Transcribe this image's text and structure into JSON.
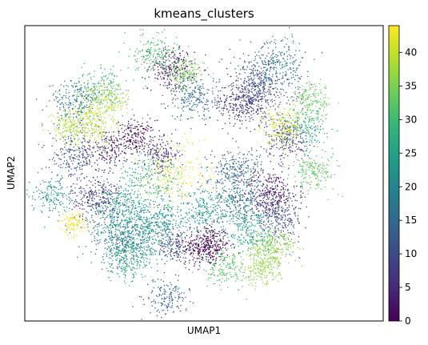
{
  "chart_data": {
    "type": "scatter",
    "title": "kmeans_clusters",
    "xlabel": "UMAP1",
    "ylabel": "UMAP2",
    "x_ticks_shown": false,
    "y_ticks_shown": false,
    "grid": false,
    "colormap": "viridis",
    "colorbar": {
      "min": 0,
      "max": 44,
      "ticks": [
        0,
        5,
        10,
        15,
        20,
        25,
        30,
        35,
        40
      ],
      "tick_labels": [
        "0",
        "5",
        "10",
        "15",
        "20",
        "25",
        "30",
        "35",
        "40"
      ]
    },
    "viridis_stops": [
      "#440154",
      "#482878",
      "#3e4989",
      "#31688e",
      "#26828e",
      "#1f9e89",
      "#35b779",
      "#6ece58",
      "#b5de2b",
      "#fde725"
    ],
    "xlim": [
      -11,
      13
    ],
    "ylim": [
      -10,
      12
    ],
    "clusters": [
      {
        "cluster": 0,
        "x": 1.2,
        "y": -4.4,
        "spread": 0.9,
        "n": 340
      },
      {
        "cluster": 1,
        "x": -3.6,
        "y": 3.6,
        "spread": 0.8,
        "n": 200
      },
      {
        "cluster": 2,
        "x": -1.2,
        "y": 8.8,
        "spread": 0.9,
        "n": 220
      },
      {
        "cluster": 3,
        "x": 5.4,
        "y": -0.6,
        "spread": 1.1,
        "n": 330
      },
      {
        "cluster": 4,
        "x": -5.6,
        "y": 2.8,
        "spread": 0.9,
        "n": 180
      },
      {
        "cluster": 5,
        "x": -1.8,
        "y": 2.4,
        "spread": 0.7,
        "n": 140
      },
      {
        "cluster": 6,
        "x": 3.6,
        "y": 6.2,
        "spread": 1.0,
        "n": 260
      },
      {
        "cluster": 7,
        "x": -6.2,
        "y": -0.8,
        "spread": 1.0,
        "n": 260
      },
      {
        "cluster": 8,
        "x": 6.6,
        "y": 3.6,
        "spread": 0.9,
        "n": 220
      },
      {
        "cluster": 9,
        "x": -0.9,
        "y": -4.5,
        "spread": 0.7,
        "n": 140
      },
      {
        "cluster": 10,
        "x": 4.6,
        "y": 7.4,
        "spread": 1.4,
        "n": 420
      },
      {
        "cluster": 11,
        "x": 6.0,
        "y": -2.4,
        "spread": 1.0,
        "n": 240
      },
      {
        "cluster": 12,
        "x": -7.8,
        "y": 2.2,
        "spread": 0.9,
        "n": 180
      },
      {
        "cluster": 13,
        "x": -1.5,
        "y": -8.3,
        "spread": 0.8,
        "n": 150
      },
      {
        "cluster": 14,
        "x": 3.2,
        "y": 1.1,
        "spread": 1.1,
        "n": 280
      },
      {
        "cluster": 15,
        "x": 0.3,
        "y": 6.6,
        "spread": 1.0,
        "n": 230
      },
      {
        "cluster": 16,
        "x": -4.3,
        "y": -4.6,
        "spread": 1.0,
        "n": 220
      },
      {
        "cluster": 17,
        "x": -7.6,
        "y": 6.3,
        "spread": 1.0,
        "n": 200
      },
      {
        "cluster": 18,
        "x": 6.0,
        "y": 9.3,
        "spread": 1.2,
        "n": 210
      },
      {
        "cluster": 19,
        "x": 3.2,
        "y": -1.4,
        "spread": 1.0,
        "n": 220
      },
      {
        "cluster": 20,
        "x": -5.0,
        "y": -3.2,
        "spread": 1.2,
        "n": 240
      },
      {
        "cluster": 21,
        "x": -1.8,
        "y": -2.6,
        "spread": 1.0,
        "n": 200
      },
      {
        "cluster": 22,
        "x": -9.2,
        "y": -0.6,
        "spread": 0.8,
        "n": 160
      },
      {
        "cluster": 23,
        "x": -3.0,
        "y": -3.4,
        "spread": 1.2,
        "n": 260
      },
      {
        "cluster": 24,
        "x": 1.0,
        "y": -1.8,
        "spread": 1.1,
        "n": 230
      },
      {
        "cluster": 25,
        "x": -4.6,
        "y": -1.4,
        "spread": 1.0,
        "n": 200
      },
      {
        "cluster": 26,
        "x": 4.2,
        "y": -3.4,
        "spread": 1.0,
        "n": 200
      },
      {
        "cluster": 27,
        "x": -2.6,
        "y": 0.6,
        "spread": 1.4,
        "n": 230
      },
      {
        "cluster": 28,
        "x": 7.8,
        "y": 4.4,
        "spread": 0.8,
        "n": 160
      },
      {
        "cluster": 29,
        "x": -4.0,
        "y": -5.6,
        "spread": 0.9,
        "n": 180
      },
      {
        "cluster": 30,
        "x": -5.8,
        "y": 7.2,
        "spread": 1.0,
        "n": 200
      },
      {
        "cluster": 31,
        "x": -2.2,
        "y": 10.0,
        "spread": 0.9,
        "n": 180
      },
      {
        "cluster": 32,
        "x": 2.4,
        "y": -6.0,
        "spread": 0.9,
        "n": 170
      },
      {
        "cluster": 33,
        "x": 8.4,
        "y": 1.2,
        "spread": 0.9,
        "n": 190
      },
      {
        "cluster": 34,
        "x": 8.2,
        "y": 6.4,
        "spread": 0.8,
        "n": 170
      },
      {
        "cluster": 35,
        "x": -0.2,
        "y": 8.4,
        "spread": 0.7,
        "n": 150
      },
      {
        "cluster": 36,
        "x": 5.6,
        "y": -4.6,
        "spread": 0.9,
        "n": 220
      },
      {
        "cluster": 37,
        "x": 4.8,
        "y": -6.0,
        "spread": 0.8,
        "n": 180
      },
      {
        "cluster": 38,
        "x": -8.0,
        "y": 4.4,
        "spread": 0.8,
        "n": 150
      },
      {
        "cluster": 39,
        "x": -6.4,
        "y": 4.4,
        "spread": 1.0,
        "n": 180
      },
      {
        "cluster": 40,
        "x": -5.6,
        "y": 6.2,
        "spread": 0.9,
        "n": 170
      },
      {
        "cluster": 41,
        "x": 6.2,
        "y": 4.6,
        "spread": 0.8,
        "n": 170
      },
      {
        "cluster": 42,
        "x": -0.8,
        "y": 1.0,
        "spread": 1.5,
        "n": 200
      },
      {
        "cluster": 43,
        "x": -7.8,
        "y": -2.8,
        "spread": 0.5,
        "n": 110
      }
    ]
  }
}
